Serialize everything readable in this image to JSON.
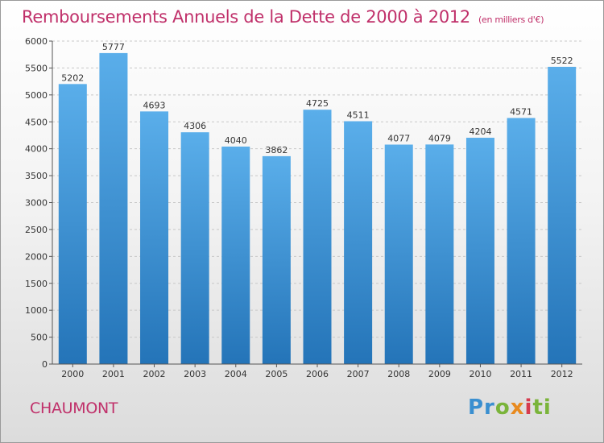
{
  "title": "Remboursements Annuels de la Dette de 2000 à 2012",
  "unit_note": "(en milliers d'€)",
  "city": "CHAUMONT",
  "logo": "Proxiti",
  "colors": {
    "bar": "#2e86cc",
    "title": "#c0306a",
    "grid": "#c8c8c8"
  },
  "chart_data": {
    "type": "bar",
    "title": "Remboursements Annuels de la Dette de 2000 à 2012",
    "unit": "(en milliers d'€)",
    "categories": [
      "2000",
      "2001",
      "2002",
      "2003",
      "2004",
      "2005",
      "2006",
      "2007",
      "2008",
      "2009",
      "2010",
      "2011",
      "2012"
    ],
    "values": [
      5202,
      5777,
      4693,
      4306,
      4040,
      3862,
      4725,
      4511,
      4077,
      4079,
      4204,
      4571,
      5522
    ],
    "ylim": [
      0,
      6000
    ],
    "yticks": [
      0,
      500,
      1000,
      1500,
      2000,
      2500,
      3000,
      3500,
      4000,
      4500,
      5000,
      5500,
      6000
    ],
    "grid": true,
    "legend": "none",
    "data_labels": true
  }
}
